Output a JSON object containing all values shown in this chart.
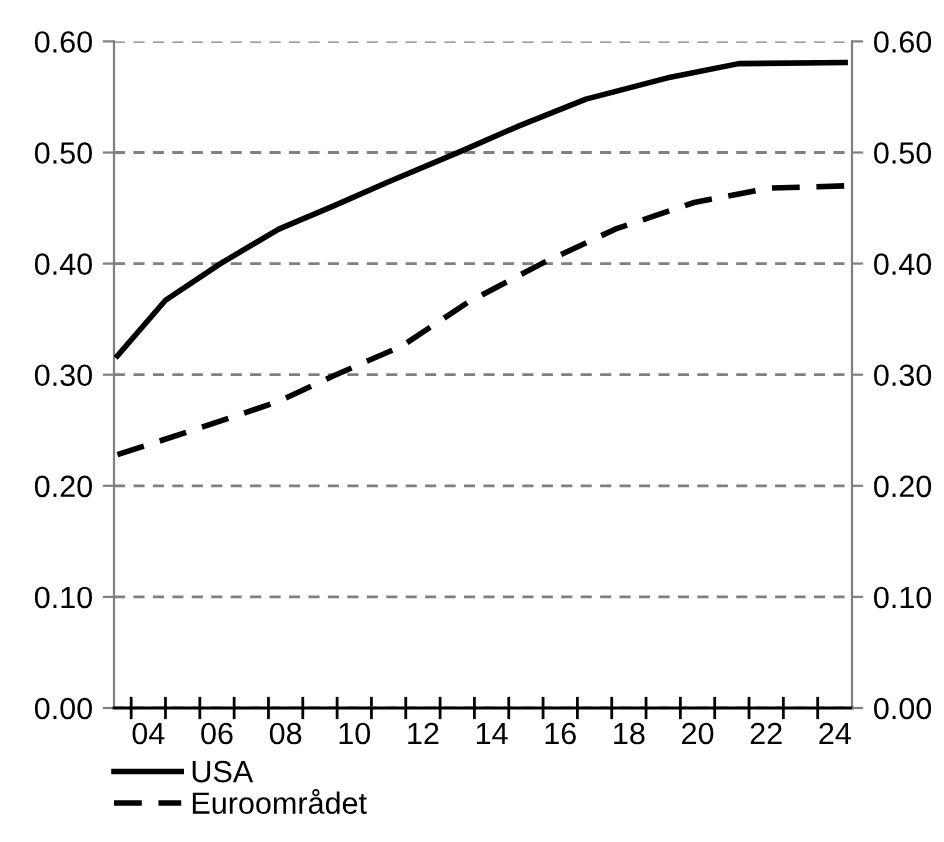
{
  "chart_data": {
    "type": "line",
    "xlim": [
      3,
      24.5
    ],
    "xticks": [
      {
        "value": 4,
        "label": "04"
      },
      {
        "value": 6,
        "label": "06"
      },
      {
        "value": 8,
        "label": "08"
      },
      {
        "value": 10,
        "label": "10"
      },
      {
        "value": 12,
        "label": "12"
      },
      {
        "value": 14,
        "label": "14"
      },
      {
        "value": 16,
        "label": "16"
      },
      {
        "value": 18,
        "label": "18"
      },
      {
        "value": 20,
        "label": "20"
      },
      {
        "value": 22,
        "label": "22"
      },
      {
        "value": 24,
        "label": "24"
      },
      {
        "value": 3.5,
        "label": null
      },
      {
        "value": 4.5,
        "label": null
      },
      {
        "value": 5.5,
        "label": null
      },
      {
        "value": 6.5,
        "label": null
      },
      {
        "value": 7.5,
        "label": null
      },
      {
        "value": 8.5,
        "label": null
      },
      {
        "value": 9.5,
        "label": null
      },
      {
        "value": 10.5,
        "label": null
      },
      {
        "value": 11.5,
        "label": null
      },
      {
        "value": 12.5,
        "label": null
      },
      {
        "value": 13.5,
        "label": null
      },
      {
        "value": 14.5,
        "label": null
      },
      {
        "value": 15.5,
        "label": null
      },
      {
        "value": 16.5,
        "label": null
      },
      {
        "value": 17.5,
        "label": null
      },
      {
        "value": 18.5,
        "label": null
      },
      {
        "value": 19.5,
        "label": null
      },
      {
        "value": 20.5,
        "label": null
      },
      {
        "value": 21.5,
        "label": null
      },
      {
        "value": 22.5,
        "label": null
      },
      {
        "value": 23.5,
        "label": null
      }
    ],
    "ylim": [
      0,
      0.6
    ],
    "yticks": [
      {
        "value": 0,
        "label": "0.00"
      },
      {
        "value": 0.1,
        "label": "0.10"
      },
      {
        "value": 0.2,
        "label": "0.20"
      },
      {
        "value": 0.3,
        "label": "0.30"
      },
      {
        "value": 0.4,
        "label": "0.40"
      },
      {
        "value": 0.5,
        "label": "0.50"
      },
      {
        "value": 0.6,
        "label": "0.60"
      }
    ],
    "y2lim": [
      0,
      0.6
    ],
    "y2ticks": [
      {
        "value": 0,
        "label": "0.00"
      },
      {
        "value": 0.1,
        "label": "0.10"
      },
      {
        "value": 0.2,
        "label": "0.20"
      },
      {
        "value": 0.3,
        "label": "0.30"
      },
      {
        "value": 0.4,
        "label": "0.40"
      },
      {
        "value": 0.5,
        "label": "0.50"
      },
      {
        "value": 0.6,
        "label": "0.60"
      }
    ],
    "grid": "y",
    "legend": "bottom left",
    "series": [
      {
        "name": "USA",
        "color": "#000000",
        "line_style": "solid",
        "x": [
          3.1,
          4.5,
          6.1,
          7.8,
          9.4,
          10.95,
          13.1,
          14.8,
          16.75,
          19.1,
          21.2,
          24.3
        ],
        "values": [
          0.317,
          0.367,
          0.4,
          0.431,
          0.452,
          0.473,
          0.501,
          0.524,
          0.548,
          0.567,
          0.58,
          0.581
        ]
      },
      {
        "name": "Euroområdet",
        "color": "#000000",
        "line_style": "dashed",
        "x": [
          3.1,
          5.3,
          7.8,
          9.4,
          11.4,
          13.3,
          15.46,
          17.6,
          19.9,
          22.1,
          24.3
        ],
        "values": [
          0.228,
          0.25,
          0.276,
          0.299,
          0.326,
          0.365,
          0.4,
          0.431,
          0.455,
          0.468,
          0.47
        ]
      }
    ]
  }
}
